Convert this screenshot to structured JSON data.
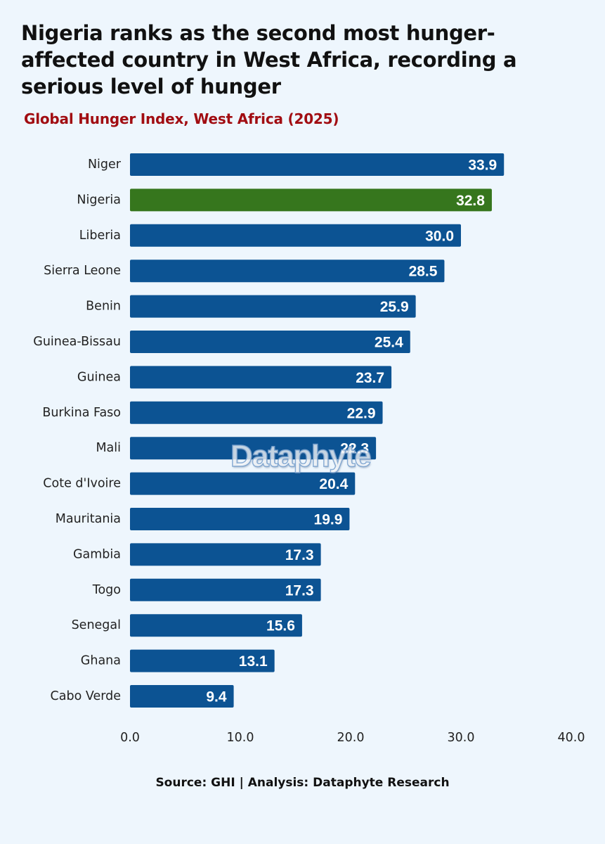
{
  "title": "Nigeria ranks as the second most hunger-affected country in West Africa, recording a serious level of hunger",
  "subtitle": "Global Hunger Index, West Africa (2025)",
  "watermark": "Dataphyte",
  "source": "Source: GHI | Analysis: Dataphyte Research",
  "colors": {
    "background": "#eef6fd",
    "bar": "#0c5393",
    "highlight": "#36761d",
    "subtitle": "#a10d12"
  },
  "chart_data": {
    "type": "bar",
    "orientation": "horizontal",
    "title": "Global Hunger Index, West Africa (2025)",
    "xlabel": "",
    "ylabel": "",
    "xlim": [
      0,
      40
    ],
    "xticks": [
      "0.0",
      "10.0",
      "20.0",
      "30.0",
      "40.0"
    ],
    "grid": false,
    "highlight": "Nigeria",
    "categories": [
      "Niger",
      "Nigeria",
      "Liberia",
      "Sierra Leone",
      "Benin",
      "Guinea-Bissau",
      "Guinea",
      "Burkina Faso",
      "Mali",
      "Cote d'Ivoire",
      "Mauritania",
      "Gambia",
      "Togo",
      "Senegal",
      "Ghana",
      "Cabo Verde"
    ],
    "values": [
      33.9,
      32.8,
      30.0,
      28.5,
      25.9,
      25.4,
      23.7,
      22.9,
      22.3,
      20.4,
      19.9,
      17.3,
      17.3,
      15.6,
      13.1,
      9.4
    ],
    "value_labels": [
      "33.9",
      "32.8",
      "30.0",
      "28.5",
      "25.9",
      "25.4",
      "23.7",
      "22.9",
      "22.3",
      "20.4",
      "19.9",
      "17.3",
      "17.3",
      "15.6",
      "13.1",
      "9.4"
    ]
  }
}
